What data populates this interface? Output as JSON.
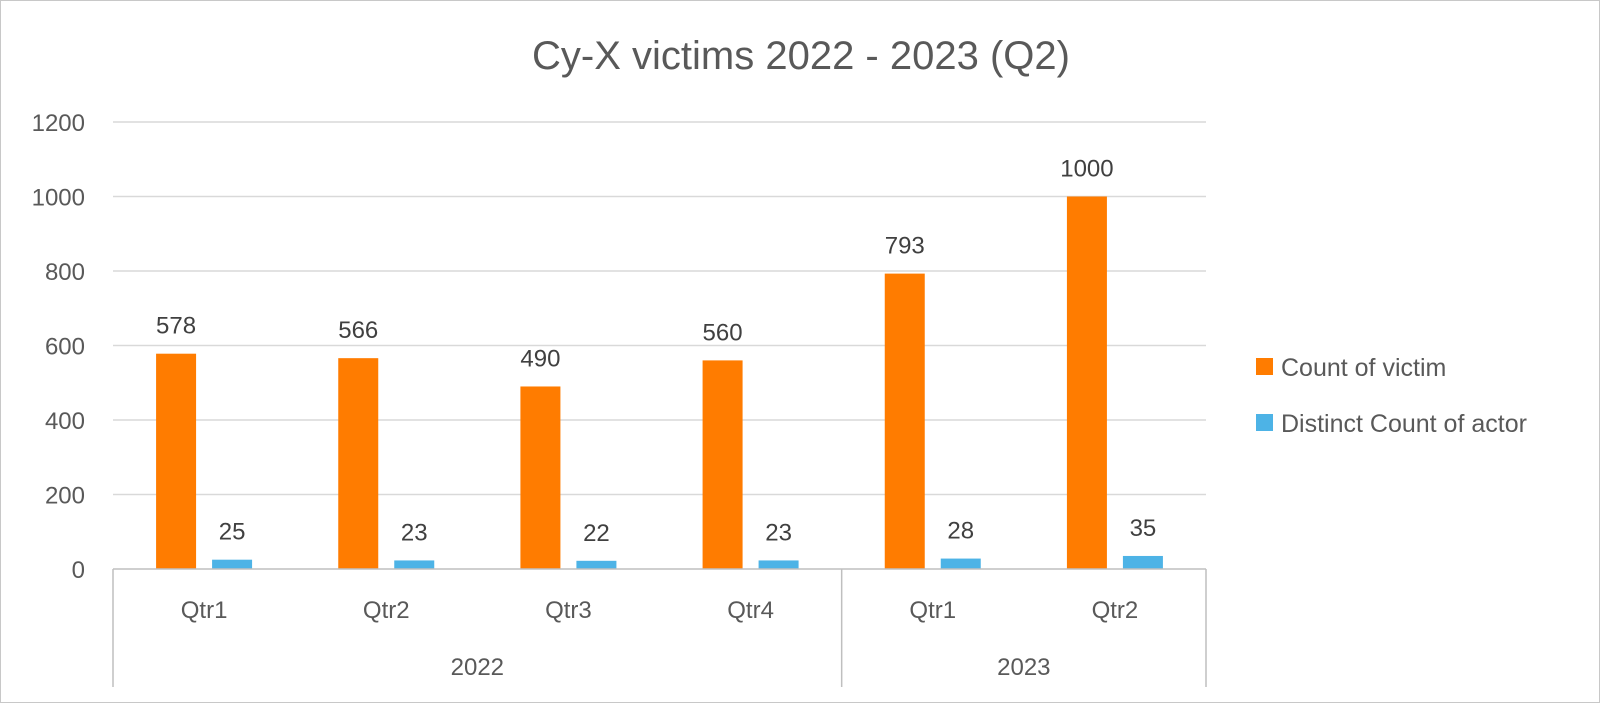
{
  "chart_data": {
    "type": "bar",
    "title": "Cy-X victims 2022 - 2023 (Q2)",
    "categories": [
      "Qtr1",
      "Qtr2",
      "Qtr3",
      "Qtr4",
      "Qtr1",
      "Qtr2"
    ],
    "groups": [
      {
        "label": "2022",
        "count": 4
      },
      {
        "label": "2023",
        "count": 2
      }
    ],
    "series": [
      {
        "name": "Count of victim",
        "color": "#ff7c00",
        "values": [
          578,
          566,
          490,
          560,
          793,
          1000
        ]
      },
      {
        "name": "Distinct Count of actor",
        "color": "#4db3e6",
        "values": [
          25,
          23,
          22,
          23,
          28,
          35
        ]
      }
    ],
    "ylim": [
      0,
      1200
    ],
    "yticks": [
      "0",
      "200",
      "400",
      "600",
      "800",
      "1000",
      "1200"
    ],
    "grid": true,
    "legend_position": "right",
    "data_labels": true
  }
}
